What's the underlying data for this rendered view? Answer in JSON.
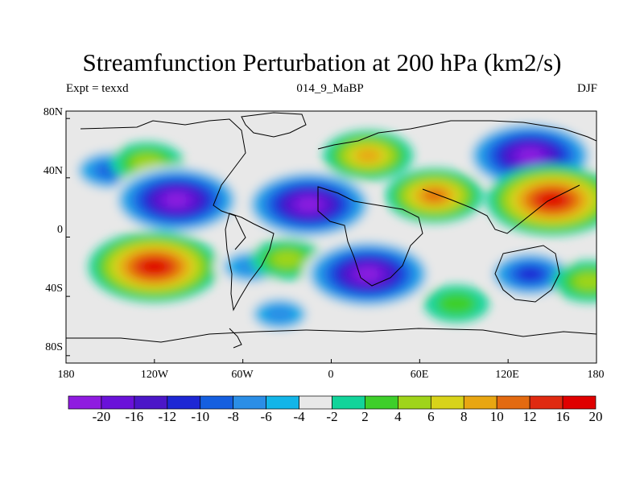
{
  "title": "Streamfunction Perturbation at 200 hPa (km2/s)",
  "subtitle_left": "Expt = texxd",
  "subtitle_center": "014_9_MaBP",
  "subtitle_right": "DJF",
  "lat_labels": [
    "80N",
    "40N",
    "0",
    "40S",
    "80S"
  ],
  "lon_labels": [
    "180",
    "120W",
    "60W",
    "0",
    "60E",
    "120E",
    "180"
  ],
  "colorbar": {
    "labels": [
      "-20",
      "-16",
      "-12",
      "-10",
      "-8",
      "-6",
      "-4",
      "-2",
      "2",
      "4",
      "6",
      "8",
      "10",
      "12",
      "16",
      "20"
    ],
    "colors": [
      "#8f1be0",
      "#6a12d9",
      "#4b16c8",
      "#1d27d4",
      "#155fe0",
      "#2b8ee6",
      "#13b5e8",
      "#e8e8e8",
      "#12d49a",
      "#3ecf2a",
      "#9fd41a",
      "#d8d31a",
      "#e8a612",
      "#e36a10",
      "#e02a10",
      "#e00000"
    ]
  },
  "field_features": [
    {
      "name": "north-pacific-negative",
      "lon": -150,
      "lat": 45,
      "value": -8
    },
    {
      "name": "north-pacific-positive",
      "lon": -125,
      "lat": 50,
      "value": 6
    },
    {
      "name": "north-america-negative",
      "lon": -105,
      "lat": 25,
      "value": -20
    },
    {
      "name": "south-pacific-positive",
      "lon": -120,
      "lat": -20,
      "value": 20
    },
    {
      "name": "atlantic-negative",
      "lon": -15,
      "lat": 22,
      "value": -20
    },
    {
      "name": "north-atlantic-positive",
      "lon": 25,
      "lat": 55,
      "value": 10
    },
    {
      "name": "south-atlantic-negative",
      "lon": -55,
      "lat": -20,
      "value": -6
    },
    {
      "name": "south-atlantic-small",
      "lon": -30,
      "lat": -15,
      "value": 6
    },
    {
      "name": "south-atlantic-south",
      "lon": -35,
      "lat": -52,
      "value": -6
    },
    {
      "name": "africa-negative",
      "lon": 25,
      "lat": -25,
      "value": -20
    },
    {
      "name": "asia-positive",
      "lon": 70,
      "lat": 28,
      "value": 12
    },
    {
      "name": "northeast-asia-negative",
      "lon": 135,
      "lat": 55,
      "value": -20
    },
    {
      "name": "west-pacific-positive",
      "lon": 150,
      "lat": 25,
      "value": 20
    },
    {
      "name": "australia-negative",
      "lon": 135,
      "lat": -25,
      "value": -10
    },
    {
      "name": "south-pacific-east-positive",
      "lon": 175,
      "lat": -30,
      "value": 6
    },
    {
      "name": "indian-ocean-south",
      "lon": 85,
      "lat": -45,
      "value": 4
    }
  ]
}
